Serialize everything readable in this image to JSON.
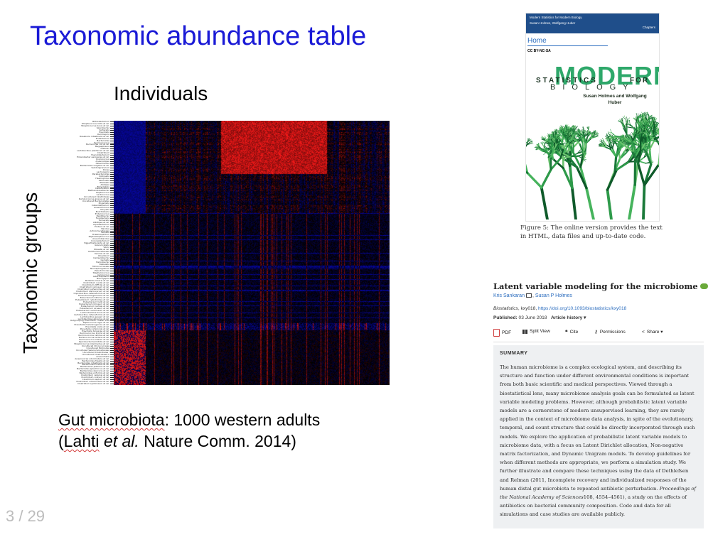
{
  "slide": {
    "title": "Taxonomic abundance table",
    "column_label": "Individuals",
    "row_label": "Taxonomic groups",
    "caption_line1_word": "Gut microbiota",
    "caption_line1_rest": ": 1000 western adults",
    "caption_line2_open": "(",
    "caption_line2_author": "Lahti",
    "caption_line2_etal": "et al.",
    "caption_line2_rest": " Nature Comm. 2014)",
    "page_number": "3 / 29"
  },
  "heatmap": {
    "colors": {
      "low": "#0a0aff",
      "mid": "#000000",
      "high": "#ff1a1a"
    },
    "taxa_labels": [
      "Bifidobacterium",
      "Streptococcus mitis et rel.",
      "Streptococcus bovis et rel.",
      "Sporobacter",
      "Sutterella",
      "Prevotella",
      "Oscillospira",
      "Roseburia intestinalis et rel.",
      "Eubacterium",
      "Bacteroides",
      "Ruminococcus",
      "Escherichia coli et rel.",
      "Megasphaera",
      "Dialister",
      "Lactobacillus plantarum et rel.",
      "Clostridium",
      "Faecalibacterium",
      "Enterobacter aerogenes et rel.",
      "Coprococcus",
      "Anaerostipes",
      "Akkermansia",
      "Bacteroides vulgatus et rel.",
      "Subdoligranulum",
      "Dorea",
      "Lachnospira",
      "Parabacteroides",
      "Collinsella",
      "Haemophilus",
      "Veillonella",
      "Weissella",
      "Alistipes",
      "Butyrivibrio",
      "Desulfovibrio",
      "Methanobrevibacter",
      "Peptococcus",
      "Lactococcus",
      "Uncultured Clostridiales",
      "Ruminococcus gnavus et rel.",
      "Uncultured Bacteroidetes",
      "Bryantella",
      "Catenibacterium",
      "Anaerotruncus",
      "Moryella",
      "Burkholderia",
      "Enterococcus",
      "Papillibacter",
      "Fusobacteria",
      "Tannerella",
      "Allistipes et rel.",
      "Aquabacterium",
      "Proteus et rel.",
      "Bacillus",
      "Actinomycetaceae",
      "Serratia",
      "Oceanospirillum",
      "Peptostreptococcus",
      "Aneurinibacillus",
      "Corynebacterium",
      "Eggerthella lenta et rel.",
      "Granulicatella",
      "Vibrio",
      "Wissella et rel.",
      "Xanthomonadaceae",
      "Yersinia et rel.",
      "Atopobium",
      "Campylobacter",
      "Gemella",
      "Helicobacter",
      "Klebsiella",
      "Micrococcaceae",
      "Novosphingobium",
      "Pseudomonas",
      "Staphylococcus",
      "Aerococcus",
      "Asteroleplasma",
      "Brachyspira",
      "Bulleidia moorei et rel.",
      "Clostridium nexile et rel.",
      "Clostridium difficile et rel.",
      "Clostridium ramosum et rel.",
      "Clostridium sphenoides et rel.",
      "Clostridium stercorarium et rel.",
      "Coprobacillus catenaformis et rel.",
      "Dorea formicigenerans et rel.",
      "Eubacterium biforme et rel.",
      "Eubacterium cylindroides et rel.",
      "Eubacterium hallii et rel.",
      "Eubacterium limosum et rel.",
      "Eubacterium rectale et rel.",
      "Eubacterium siraeum et rel.",
      "Eubacterium ventriosum et rel.",
      "Lachnobacillus bovis et rel.",
      "Lactobacillus catenaformis et rel.",
      "Lactobacillus gasseri et rel.",
      "Lactobacillus salivarius et rel.",
      "Outgrouping clostridium cluster XIVa",
      "Peptococcus niger et rel.",
      "Prevotella melaninogenica et rel.",
      "Prevotella oralis et rel.",
      "Prevotella ruminicola et rel.",
      "Prevotella tannerae et rel.",
      "Ruminococcus bromii et rel.",
      "Ruminococcus callidus et rel.",
      "Ruminococcus lactaris et rel.",
      "Ruminococcus obeum et rel.",
      "Sporobacter termitidis et rel.",
      "Streptococcus intermedius et rel.",
      "Uncultured Chroococcales",
      "Uncultured Mollicutes",
      "Uncultured Selenomonadaceae",
      "Uncultured Clostridiales I",
      "Uncultured Clostridiales II",
      "Anaerofustis",
      "Anaerovorax odorimutans et rel.",
      "Bacteroides fragilis et rel.",
      "Bacteroides intestinalis et rel.",
      "Bacteroides ovatus et rel.",
      "Bacteroides plebeius et rel.",
      "Bacteroides splachnicus et rel.",
      "Bacteroides stercoris et rel.",
      "Bacteroides uniformis et rel.",
      "Clostridium cellulosi et rel.",
      "Clostridium colinum et rel.",
      "Clostridium leptum et rel.",
      "Clostridium orbiscindens et rel.",
      "Clostridium symbiosum et rel."
    ]
  },
  "book": {
    "header_line1": "Modern Statistics for Modern Biology",
    "header_line2": "Susan Holmes, Wolfgang Huber",
    "header_chapters": "Chapters",
    "home": "Home",
    "license": "CC BY-NC-SA",
    "cover_word_statistics": "STATISTICS",
    "cover_word_modern": "MODERN",
    "cover_word_for": "FOR",
    "cover_word_biology": "BIOLOGY",
    "cover_authors": "Susan Holmes and Wolfgang Huber",
    "figure_caption": "Figure 5: The online version provides the text in HTML, data files and up-to-date code."
  },
  "article": {
    "title": "Latent variable modeling for the microbiome",
    "author1": "Kris Sankaran",
    "author_sep": ", ",
    "author2": "Susan P Holmes",
    "journal_name": "Biostatistics",
    "journal_rest": ", kxy018, ",
    "doi": "https://doi.org/10.1093/biostatistics/kxy018",
    "published_label": "Published:",
    "published_date": "03 June 2018",
    "article_history": "Article history ▾",
    "toolbar": {
      "pdf": "PDF",
      "split_view": "Split View",
      "cite": "Cite",
      "permissions": "Permissions",
      "share": "Share ▾"
    },
    "summary_heading": "SUMMARY",
    "summary_text_1": "The human microbiome is a complex ecological system, and describing its structure and function under different environmental conditions is important from both basic scientific and medical perspectives. Viewed through a biostatistical lens, many microbiome analysis goals can be formulated as latent variable modeling problems. However, although probabilistic latent variable models are a cornerstone of modern unsupervised learning, they are rarely applied in the context of microbiome data analysis, in spite of the evolutionary, temporal, and count structure that could be directly incorporated through such models. We explore the application of probabilistic latent variable models to microbiome data, with a focus on Latent Dirichlet allocation, Non-negative matrix factorization, and Dynamic Unigram models. To develop guidelines for when different methods are appropriate, we perform a simulation study. We further illustrate and compare these techniques using the data of Dethlefsen and Relman (2011, Incomplete recovery and individualized responses of the human distal gut microbiota to repeated antibiotic perturbation. ",
    "summary_text_italic": "Proceedings of the National Academy of Sciences",
    "summary_text_2": "108, 4554–4561), a study on the effects of antibiotics on bacterial community composition. Code and data for all simulations and case studies are available publicly."
  }
}
